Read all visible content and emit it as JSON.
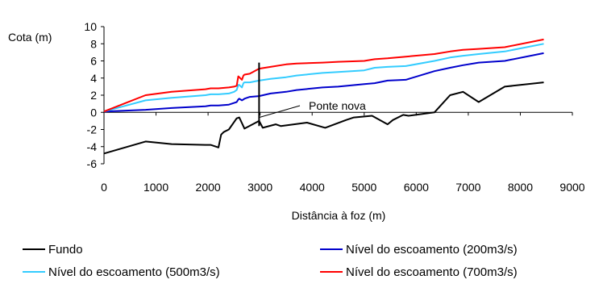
{
  "chart_data": {
    "type": "line",
    "ylabel": "Cota (m)",
    "xlabel": "Distância à foz (m)",
    "xlim": [
      0,
      9000
    ],
    "ylim": [
      -6,
      10
    ],
    "xticks": [
      0,
      1000,
      2000,
      3000,
      4000,
      5000,
      6000,
      7000,
      8000,
      9000
    ],
    "yticks": [
      -6,
      -4,
      -2,
      0,
      2,
      4,
      6,
      8,
      10
    ],
    "grid": false,
    "legend_position": "bottom",
    "annotation": {
      "text": "Ponte nova",
      "x": 2980
    },
    "series": [
      {
        "name": "Fundo",
        "color": "#000000",
        "x": [
          0,
          800,
          1300,
          1950,
          2050,
          2200,
          2250,
          2300,
          2400,
          2550,
          2600,
          2700,
          2980,
          3050,
          3300,
          3400,
          3900,
          4250,
          4650,
          4800,
          5150,
          5450,
          5550,
          5750,
          5850,
          6350,
          6650,
          6900,
          7200,
          7700,
          8450
        ],
        "y": [
          -4.8,
          -3.4,
          -3.7,
          -3.8,
          -3.8,
          -4.1,
          -2.6,
          -2.3,
          -2.0,
          -0.7,
          -0.6,
          -1.9,
          -1.0,
          -1.8,
          -1.4,
          -1.6,
          -1.2,
          -1.8,
          -0.9,
          -0.6,
          -0.4,
          -1.4,
          -0.9,
          -0.3,
          -0.4,
          0.0,
          2.0,
          2.4,
          1.2,
          3.0,
          3.5
        ]
      },
      {
        "name": "Nível do escoamento (200m3/s)",
        "color": "#0000cc",
        "x": [
          0,
          800,
          1300,
          1950,
          2050,
          2200,
          2400,
          2500,
          2550,
          2580,
          2600,
          2650,
          2680,
          2700,
          2800,
          2980,
          3200,
          3500,
          3700,
          4200,
          4500,
          5000,
          5200,
          5450,
          5800,
          6350,
          6650,
          6900,
          7200,
          7700,
          8450
        ],
        "y": [
          0.1,
          0.3,
          0.5,
          0.7,
          0.8,
          0.8,
          0.9,
          1.1,
          1.2,
          1.5,
          1.6,
          1.4,
          1.5,
          1.6,
          1.8,
          1.9,
          2.2,
          2.4,
          2.6,
          2.9,
          3.0,
          3.3,
          3.4,
          3.7,
          3.8,
          4.8,
          5.2,
          5.5,
          5.8,
          6.0,
          6.9
        ]
      },
      {
        "name": "Nível do escoamento (500m3/s)",
        "color": "#33ccff",
        "x": [
          0,
          800,
          1300,
          1950,
          2050,
          2200,
          2400,
          2500,
          2550,
          2580,
          2600,
          2650,
          2680,
          2700,
          2800,
          2980,
          3200,
          3500,
          3700,
          4200,
          4500,
          5000,
          5200,
          5450,
          5800,
          6350,
          6650,
          6900,
          7200,
          7700,
          8450
        ],
        "y": [
          0.1,
          1.4,
          1.7,
          2.0,
          2.1,
          2.1,
          2.2,
          2.4,
          2.6,
          3.2,
          3.2,
          2.9,
          3.4,
          3.5,
          3.5,
          3.7,
          3.9,
          4.1,
          4.3,
          4.6,
          4.7,
          4.9,
          5.2,
          5.3,
          5.4,
          6.0,
          6.4,
          6.6,
          6.8,
          7.1,
          8.0
        ]
      },
      {
        "name": "Nível do escoamento (700m3/s)",
        "color": "#ff0000",
        "x": [
          0,
          800,
          1300,
          1950,
          2050,
          2200,
          2400,
          2500,
          2550,
          2580,
          2600,
          2650,
          2680,
          2700,
          2800,
          2980,
          3200,
          3500,
          3700,
          4200,
          4500,
          5000,
          5200,
          5450,
          5800,
          6350,
          6650,
          6900,
          7200,
          7700,
          8450
        ],
        "y": [
          0.1,
          2.0,
          2.4,
          2.7,
          2.8,
          2.8,
          2.9,
          3.0,
          3.1,
          4.2,
          4.1,
          3.8,
          4.3,
          4.4,
          4.5,
          5.1,
          5.3,
          5.6,
          5.7,
          5.8,
          5.9,
          6.0,
          6.2,
          6.3,
          6.5,
          6.8,
          7.1,
          7.3,
          7.4,
          7.6,
          8.5
        ]
      }
    ]
  }
}
